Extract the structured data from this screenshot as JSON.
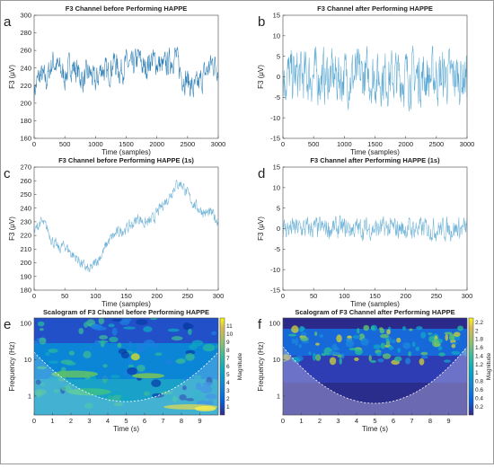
{
  "chart_data": [
    {
      "panel": "a",
      "type": "line",
      "title": "F3 Channel before Performing HAPPE",
      "xlabel": "Time (samples)",
      "ylabel": "F3 (μV)",
      "xlim": [
        0,
        3000
      ],
      "ylim": [
        160,
        300
      ],
      "xticks": [
        0,
        500,
        1000,
        1500,
        2000,
        2500,
        3000
      ],
      "yticks": [
        160,
        180,
        200,
        220,
        240,
        260,
        280,
        300
      ],
      "color": "#2f7fb5",
      "series": [
        {
          "x": [
            0,
            100,
            200,
            300,
            400,
            500,
            600,
            700,
            800,
            900,
            1000,
            1100,
            1200,
            1300,
            1400,
            1500,
            1600,
            1700,
            1800,
            1900,
            2000,
            2100,
            2200,
            2300,
            2400,
            2500,
            2600,
            2700,
            2800,
            2900,
            3000
          ],
          "values": [
            215,
            232,
            225,
            248,
            240,
            230,
            244,
            236,
            226,
            235,
            222,
            241,
            232,
            248,
            236,
            245,
            240,
            252,
            238,
            250,
            246,
            241,
            246,
            255,
            232,
            226,
            215,
            223,
            235,
            246,
            242
          ],
          "noise": 14
        }
      ]
    },
    {
      "panel": "b",
      "type": "line",
      "title": "F3 Channel after Performing HAPPE",
      "xlabel": "Time (samples)",
      "ylabel": "F3 (μV)",
      "xlim": [
        0,
        3000
      ],
      "ylim": [
        -15,
        15
      ],
      "xticks": [
        0,
        500,
        1000,
        1500,
        2000,
        2500,
        3000
      ],
      "yticks": [
        -15,
        -10,
        -5,
        0,
        5,
        10,
        15
      ],
      "color": "#5aa8d2",
      "series": [
        {
          "x": [
            0,
            500,
            1000,
            1500,
            2000,
            2500,
            3000
          ],
          "values": [
            0,
            0,
            0,
            0,
            0,
            0,
            0
          ],
          "noise": 6
        }
      ]
    },
    {
      "panel": "c",
      "type": "line",
      "title": "F3 Channel before Performing HAPPE (1s)",
      "xlabel": "Time (samples)",
      "ylabel": "F3 (μV)",
      "xlim": [
        0,
        300
      ],
      "ylim": [
        180,
        270
      ],
      "xticks": [
        0,
        50,
        100,
        150,
        200,
        250,
        300
      ],
      "yticks": [
        180,
        190,
        200,
        210,
        220,
        230,
        240,
        250,
        260,
        270
      ],
      "color": "#6fb3d6",
      "series": [
        {
          "x": [
            0,
            10,
            20,
            30,
            40,
            50,
            60,
            70,
            80,
            90,
            100,
            110,
            120,
            130,
            140,
            150,
            160,
            170,
            180,
            190,
            200,
            210,
            220,
            230,
            240,
            250,
            260,
            270,
            280,
            290,
            300
          ],
          "values": [
            222,
            230,
            226,
            216,
            210,
            213,
            207,
            203,
            198,
            194,
            200,
            206,
            215,
            220,
            223,
            225,
            228,
            233,
            229,
            230,
            236,
            243,
            248,
            257,
            258,
            250,
            243,
            239,
            236,
            236,
            230
          ],
          "noise": 4
        }
      ]
    },
    {
      "panel": "d",
      "type": "line",
      "title": "F3 Channel after Performing HAPPE (1s)",
      "xlabel": "Time (samples)",
      "ylabel": "F3 (μV)",
      "xlim": [
        0,
        300
      ],
      "ylim": [
        -15,
        15
      ],
      "xticks": [
        0,
        50,
        100,
        150,
        200,
        250,
        300
      ],
      "yticks": [
        -15,
        -10,
        -5,
        0,
        5,
        10,
        15
      ],
      "color": "#6fb3d6",
      "series": [
        {
          "x": [
            0,
            50,
            100,
            150,
            200,
            250,
            300
          ],
          "values": [
            0,
            0,
            0,
            0,
            0,
            0,
            0
          ],
          "noise": 2.5
        }
      ]
    },
    {
      "panel": "e",
      "type": "heatmap",
      "title": "Scalogram of F3 Channel before Performing HAPPE",
      "xlabel": "Time (s)",
      "ylabel": "Frequency (Hz)",
      "xlim": [
        0,
        10
      ],
      "xticks": [
        0,
        1,
        2,
        3,
        4,
        5,
        6,
        7,
        8,
        9
      ],
      "yscale": "log",
      "yticks": [
        1,
        10,
        100
      ],
      "colorbar": {
        "label": "Magnitude",
        "min": 0,
        "max": 12,
        "ticks": [
          1,
          2,
          3,
          4,
          5,
          6,
          7,
          8,
          9,
          10,
          11
        ]
      }
    },
    {
      "panel": "f",
      "type": "heatmap",
      "title": "Scalogram of F3 Channel after Performing HAPPE",
      "xlabel": "Time (s)",
      "ylabel": "Frequency (Hz)",
      "xlim": [
        0,
        10
      ],
      "xticks": [
        0,
        1,
        2,
        3,
        4,
        5,
        6,
        7,
        8,
        9
      ],
      "yscale": "log",
      "yticks": [
        1,
        10,
        100
      ],
      "colorbar": {
        "label": "Magnitude",
        "min": 0,
        "max": 2.3,
        "ticks": [
          0.2,
          0.4,
          0.6,
          0.8,
          1,
          1.2,
          1.4,
          1.6,
          1.8,
          2,
          2.2
        ]
      }
    }
  ]
}
